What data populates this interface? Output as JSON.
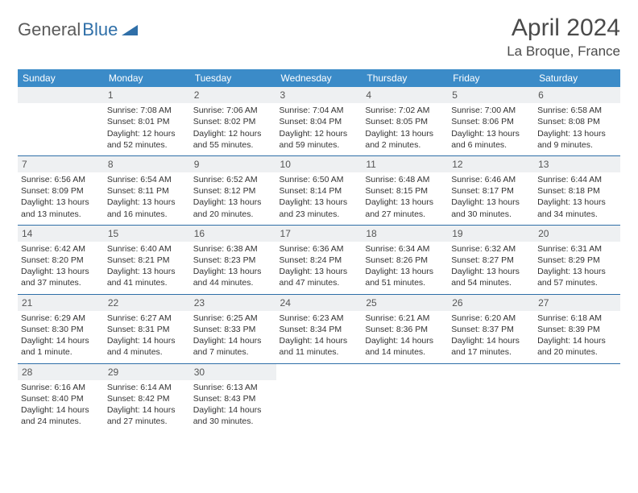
{
  "logo": {
    "text1": "General",
    "text2": "Blue"
  },
  "title": "April 2024",
  "location": "La Broque, France",
  "weekdays": [
    "Sunday",
    "Monday",
    "Tuesday",
    "Wednesday",
    "Thursday",
    "Friday",
    "Saturday"
  ],
  "colors": {
    "header_bg": "#3b8bc8",
    "header_fg": "#ffffff",
    "daybar_bg": "#eef0f2",
    "rule": "#2f6fa8",
    "text": "#333333"
  },
  "weeks": [
    [
      null,
      {
        "n": "1",
        "sr": "Sunrise: 7:08 AM",
        "ss": "Sunset: 8:01 PM",
        "d1": "Daylight: 12 hours",
        "d2": "and 52 minutes."
      },
      {
        "n": "2",
        "sr": "Sunrise: 7:06 AM",
        "ss": "Sunset: 8:02 PM",
        "d1": "Daylight: 12 hours",
        "d2": "and 55 minutes."
      },
      {
        "n": "3",
        "sr": "Sunrise: 7:04 AM",
        "ss": "Sunset: 8:04 PM",
        "d1": "Daylight: 12 hours",
        "d2": "and 59 minutes."
      },
      {
        "n": "4",
        "sr": "Sunrise: 7:02 AM",
        "ss": "Sunset: 8:05 PM",
        "d1": "Daylight: 13 hours",
        "d2": "and 2 minutes."
      },
      {
        "n": "5",
        "sr": "Sunrise: 7:00 AM",
        "ss": "Sunset: 8:06 PM",
        "d1": "Daylight: 13 hours",
        "d2": "and 6 minutes."
      },
      {
        "n": "6",
        "sr": "Sunrise: 6:58 AM",
        "ss": "Sunset: 8:08 PM",
        "d1": "Daylight: 13 hours",
        "d2": "and 9 minutes."
      }
    ],
    [
      {
        "n": "7",
        "sr": "Sunrise: 6:56 AM",
        "ss": "Sunset: 8:09 PM",
        "d1": "Daylight: 13 hours",
        "d2": "and 13 minutes."
      },
      {
        "n": "8",
        "sr": "Sunrise: 6:54 AM",
        "ss": "Sunset: 8:11 PM",
        "d1": "Daylight: 13 hours",
        "d2": "and 16 minutes."
      },
      {
        "n": "9",
        "sr": "Sunrise: 6:52 AM",
        "ss": "Sunset: 8:12 PM",
        "d1": "Daylight: 13 hours",
        "d2": "and 20 minutes."
      },
      {
        "n": "10",
        "sr": "Sunrise: 6:50 AM",
        "ss": "Sunset: 8:14 PM",
        "d1": "Daylight: 13 hours",
        "d2": "and 23 minutes."
      },
      {
        "n": "11",
        "sr": "Sunrise: 6:48 AM",
        "ss": "Sunset: 8:15 PM",
        "d1": "Daylight: 13 hours",
        "d2": "and 27 minutes."
      },
      {
        "n": "12",
        "sr": "Sunrise: 6:46 AM",
        "ss": "Sunset: 8:17 PM",
        "d1": "Daylight: 13 hours",
        "d2": "and 30 minutes."
      },
      {
        "n": "13",
        "sr": "Sunrise: 6:44 AM",
        "ss": "Sunset: 8:18 PM",
        "d1": "Daylight: 13 hours",
        "d2": "and 34 minutes."
      }
    ],
    [
      {
        "n": "14",
        "sr": "Sunrise: 6:42 AM",
        "ss": "Sunset: 8:20 PM",
        "d1": "Daylight: 13 hours",
        "d2": "and 37 minutes."
      },
      {
        "n": "15",
        "sr": "Sunrise: 6:40 AM",
        "ss": "Sunset: 8:21 PM",
        "d1": "Daylight: 13 hours",
        "d2": "and 41 minutes."
      },
      {
        "n": "16",
        "sr": "Sunrise: 6:38 AM",
        "ss": "Sunset: 8:23 PM",
        "d1": "Daylight: 13 hours",
        "d2": "and 44 minutes."
      },
      {
        "n": "17",
        "sr": "Sunrise: 6:36 AM",
        "ss": "Sunset: 8:24 PM",
        "d1": "Daylight: 13 hours",
        "d2": "and 47 minutes."
      },
      {
        "n": "18",
        "sr": "Sunrise: 6:34 AM",
        "ss": "Sunset: 8:26 PM",
        "d1": "Daylight: 13 hours",
        "d2": "and 51 minutes."
      },
      {
        "n": "19",
        "sr": "Sunrise: 6:32 AM",
        "ss": "Sunset: 8:27 PM",
        "d1": "Daylight: 13 hours",
        "d2": "and 54 minutes."
      },
      {
        "n": "20",
        "sr": "Sunrise: 6:31 AM",
        "ss": "Sunset: 8:29 PM",
        "d1": "Daylight: 13 hours",
        "d2": "and 57 minutes."
      }
    ],
    [
      {
        "n": "21",
        "sr": "Sunrise: 6:29 AM",
        "ss": "Sunset: 8:30 PM",
        "d1": "Daylight: 14 hours",
        "d2": "and 1 minute."
      },
      {
        "n": "22",
        "sr": "Sunrise: 6:27 AM",
        "ss": "Sunset: 8:31 PM",
        "d1": "Daylight: 14 hours",
        "d2": "and 4 minutes."
      },
      {
        "n": "23",
        "sr": "Sunrise: 6:25 AM",
        "ss": "Sunset: 8:33 PM",
        "d1": "Daylight: 14 hours",
        "d2": "and 7 minutes."
      },
      {
        "n": "24",
        "sr": "Sunrise: 6:23 AM",
        "ss": "Sunset: 8:34 PM",
        "d1": "Daylight: 14 hours",
        "d2": "and 11 minutes."
      },
      {
        "n": "25",
        "sr": "Sunrise: 6:21 AM",
        "ss": "Sunset: 8:36 PM",
        "d1": "Daylight: 14 hours",
        "d2": "and 14 minutes."
      },
      {
        "n": "26",
        "sr": "Sunrise: 6:20 AM",
        "ss": "Sunset: 8:37 PM",
        "d1": "Daylight: 14 hours",
        "d2": "and 17 minutes."
      },
      {
        "n": "27",
        "sr": "Sunrise: 6:18 AM",
        "ss": "Sunset: 8:39 PM",
        "d1": "Daylight: 14 hours",
        "d2": "and 20 minutes."
      }
    ],
    [
      {
        "n": "28",
        "sr": "Sunrise: 6:16 AM",
        "ss": "Sunset: 8:40 PM",
        "d1": "Daylight: 14 hours",
        "d2": "and 24 minutes."
      },
      {
        "n": "29",
        "sr": "Sunrise: 6:14 AM",
        "ss": "Sunset: 8:42 PM",
        "d1": "Daylight: 14 hours",
        "d2": "and 27 minutes."
      },
      {
        "n": "30",
        "sr": "Sunrise: 6:13 AM",
        "ss": "Sunset: 8:43 PM",
        "d1": "Daylight: 14 hours",
        "d2": "and 30 minutes."
      },
      null,
      null,
      null,
      null
    ]
  ]
}
